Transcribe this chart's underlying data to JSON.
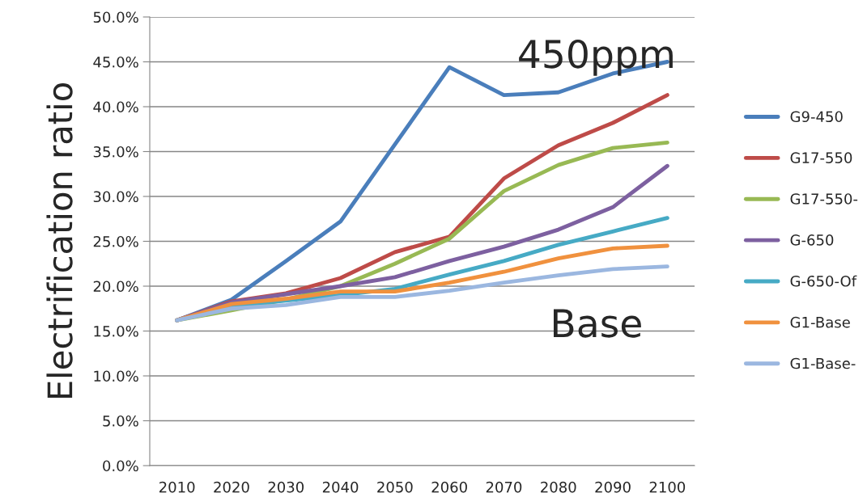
{
  "chart_data": {
    "type": "line",
    "ylabel": "Electrification ratio",
    "categories": [
      "2010",
      "2020",
      "2030",
      "2040",
      "2050",
      "2060",
      "2070",
      "2080",
      "2090",
      "2100"
    ],
    "series": [
      {
        "name": "G9-450",
        "color": "#4a7ebb",
        "values": [
          16.2,
          18.5,
          22.8,
          27.2,
          35.8,
          44.4,
          41.3,
          41.6,
          43.7,
          45.0
        ]
      },
      {
        "name": "G17-550",
        "color": "#be4b48",
        "values": [
          16.2,
          18.3,
          19.2,
          20.9,
          23.8,
          25.5,
          32.0,
          35.7,
          38.2,
          41.3
        ]
      },
      {
        "name": "G17-550-",
        "color": "#98b954",
        "values": [
          16.2,
          17.3,
          18.5,
          20.0,
          22.5,
          25.3,
          30.6,
          33.5,
          35.4,
          36.0
        ]
      },
      {
        "name": "G-650",
        "color": "#7d60a0",
        "values": [
          16.2,
          18.2,
          19.1,
          20.0,
          21.0,
          22.8,
          24.4,
          26.3,
          28.8,
          33.4
        ]
      },
      {
        "name": "G-650-Of",
        "color": "#46aac5",
        "values": [
          16.2,
          17.8,
          18.4,
          19.0,
          19.7,
          21.3,
          22.8,
          24.6,
          26.1,
          27.6
        ]
      },
      {
        "name": "G1-Base",
        "color": "#f0913e",
        "values": [
          16.2,
          18.0,
          18.6,
          19.4,
          19.4,
          20.4,
          21.6,
          23.1,
          24.2,
          24.5
        ]
      },
      {
        "name": "G1-Base-",
        "color": "#9bb7e0",
        "values": [
          16.2,
          17.5,
          17.9,
          18.8,
          18.8,
          19.5,
          20.4,
          21.2,
          21.9,
          22.2
        ]
      }
    ],
    "ylim": [
      0,
      50
    ],
    "yticks": [
      {
        "value": 0,
        "label": "0.0%"
      },
      {
        "value": 5,
        "label": "5.0%"
      },
      {
        "value": 10,
        "label": "10.0%"
      },
      {
        "value": 15,
        "label": "15.0%"
      },
      {
        "value": 20,
        "label": "20.0%"
      },
      {
        "value": 25,
        "label": "25.0%"
      },
      {
        "value": 30,
        "label": "30.0%"
      },
      {
        "value": 35,
        "label": "35.0%"
      },
      {
        "value": 40,
        "label": "40.0%"
      },
      {
        "value": 45,
        "label": "45.0%"
      },
      {
        "value": 50,
        "label": "50.0%"
      }
    ],
    "grid": "y",
    "legend": "right",
    "marker": "none",
    "line_style": "solid",
    "annotations": [
      "450ppm",
      "Base"
    ]
  }
}
